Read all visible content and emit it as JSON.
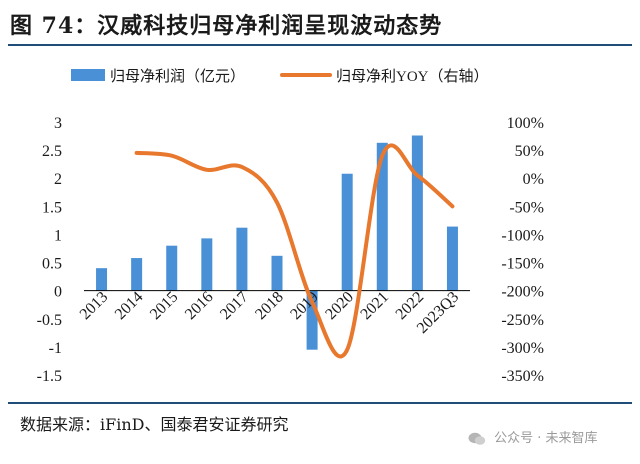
{
  "title": "图 74：汉威科技归母净利润呈现波动态势",
  "source": "数据来源：iFinD、国泰君安证券研究",
  "watermark": "公众号 · 未来智库",
  "colors": {
    "bar": "#4a90d6",
    "line": "#e8782d",
    "rule": "#1f4e79",
    "text": "#1a1a1a"
  },
  "chart_data": {
    "type": "bar",
    "categories": [
      "2013",
      "2014",
      "2015",
      "2016",
      "2017",
      "2018",
      "2019",
      "2020",
      "2021",
      "2022",
      "2023Q3"
    ],
    "series": [
      {
        "name": "归母净利润（亿元）",
        "type": "bar",
        "axis": "left",
        "values": [
          0.4,
          0.58,
          0.8,
          0.93,
          1.12,
          0.62,
          -1.05,
          2.08,
          2.63,
          2.76,
          1.14
        ]
      },
      {
        "name": "归母净利YOY（右轴）",
        "type": "line",
        "axis": "right",
        "smooth": true,
        "values": [
          null,
          45,
          40,
          15,
          20,
          -43,
          -220,
          -305,
          40,
          5,
          -50
        ]
      }
    ],
    "yleft": {
      "min": -1.5,
      "max": 3,
      "ticks": [
        "3",
        "2.5",
        "2",
        "1.5",
        "1",
        "0.5",
        "0",
        "-0.5",
        "-1",
        "-1.5"
      ]
    },
    "yright": {
      "min": -350,
      "max": 100,
      "ticks": [
        "100%",
        "50%",
        "0%",
        "-50%",
        "-100%",
        "-150%",
        "-200%",
        "-250%",
        "-300%",
        "-350%"
      ]
    },
    "legend_position": "top"
  }
}
